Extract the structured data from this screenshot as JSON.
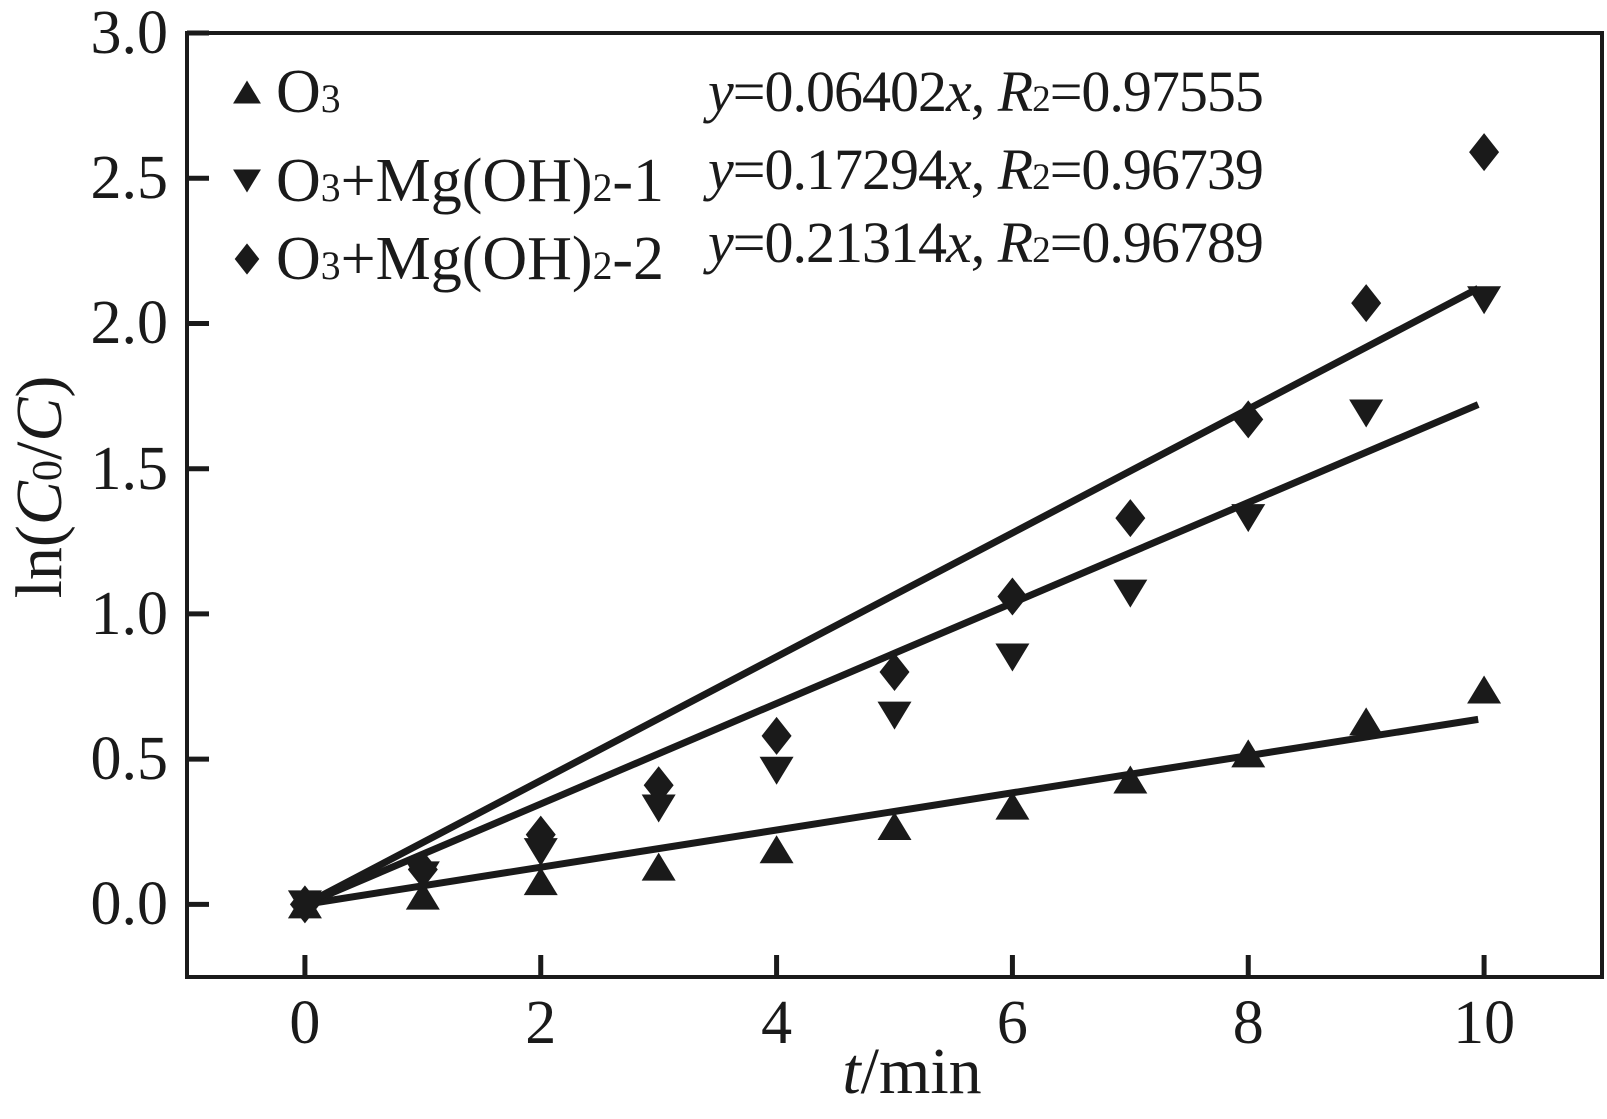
{
  "figure": {
    "background": "#ffffff",
    "ink_color": "#1a1a1a"
  },
  "chart_data": {
    "type": "scatter",
    "title": "",
    "xlabel": "t/min",
    "ylabel": "ln(C₀/C)",
    "xlim": [
      -1,
      11
    ],
    "ylim": [
      -0.25,
      3.0
    ],
    "grid": false,
    "legend_position": "top-left",
    "x_ticks": {
      "values": [
        0,
        2,
        4,
        6,
        8,
        10
      ],
      "labels": [
        "0",
        "2",
        "4",
        "6",
        "8",
        "10"
      ]
    },
    "y_ticks": {
      "values": [
        0,
        0.5,
        1.0,
        1.5,
        2.0,
        2.5,
        3.0
      ],
      "labels": [
        "0.0",
        "0.5",
        "1.0",
        "1.5",
        "2.0",
        "2.5",
        "3.0"
      ]
    },
    "x": [
      0,
      1,
      2,
      3,
      4,
      5,
      6,
      7,
      8,
      9,
      10
    ],
    "series": [
      {
        "name": "O₃",
        "marker": "triangle-up",
        "y": [
          0,
          0.03,
          0.08,
          0.13,
          0.19,
          0.27,
          0.34,
          0.43,
          0.52,
          0.63,
          0.74
        ],
        "fit": {
          "slope": 0.06402,
          "intercept": 0,
          "r2": 0.97555
        },
        "equation": "y=0.06402x, R²=0.97555"
      },
      {
        "name": "O₃+Mg(OH)₂-1",
        "marker": "triangle-down",
        "y": [
          0,
          0.1,
          0.18,
          0.33,
          0.46,
          0.65,
          0.85,
          1.07,
          1.33,
          1.69,
          2.08
        ],
        "fit": {
          "slope": 0.17294,
          "intercept": 0,
          "r2": 0.96739
        },
        "equation": "y=0.17294x, R²=0.96739"
      },
      {
        "name": "O₃+Mg(OH)₂-2",
        "marker": "diamond",
        "y": [
          0,
          0.12,
          0.24,
          0.41,
          0.58,
          0.8,
          1.06,
          1.33,
          1.67,
          2.07,
          2.59
        ],
        "fit": {
          "slope": 0.21314,
          "intercept": 0,
          "r2": 0.96789
        },
        "equation": "y=0.21314x, R²=0.96789"
      }
    ]
  }
}
